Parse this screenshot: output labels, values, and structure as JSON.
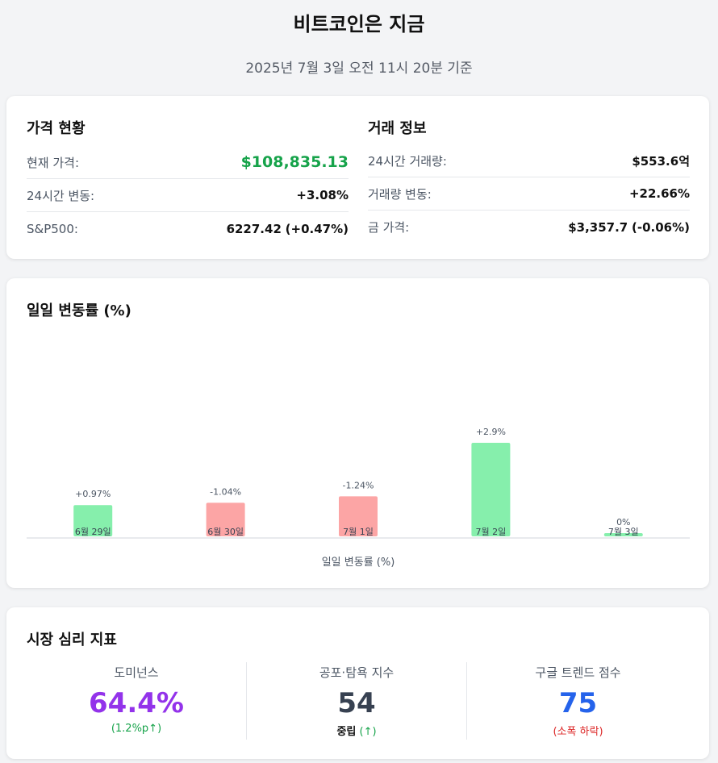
{
  "header": {
    "title": "비트코인은 지금",
    "subtitle": "2025년 7월 3일 오전 11시 20분 기준"
  },
  "price_status": {
    "title": "가격 현황",
    "rows": [
      {
        "label": "현재 가격:",
        "value": "$108,835.13"
      },
      {
        "label": "24시간 변동:",
        "value": "+3.08%"
      },
      {
        "label": "S&P500:",
        "value": "6227.42",
        "change": "(+0.47%)"
      }
    ]
  },
  "trade_info": {
    "title": "거래 정보",
    "rows": [
      {
        "label": "24시간 거래량:",
        "value": "$553.6억"
      },
      {
        "label": "거래량 변동:",
        "value": "+22.66%"
      },
      {
        "label": "금 가격:",
        "value": "$3,357.7",
        "change": "(-0.06%)"
      }
    ]
  },
  "chart_section": {
    "title": "일일 변동률 (%)"
  },
  "chart_data": {
    "type": "bar",
    "categories": [
      "6월 29일",
      "6월 30일",
      "7월 1일",
      "7월 2일",
      "7월 3일"
    ],
    "values": [
      0.97,
      -1.04,
      -1.24,
      2.9,
      0
    ],
    "data_labels": [
      "+0.97%",
      "-1.04%",
      "-1.24%",
      "+2.9%",
      "0%"
    ],
    "xlabel": "일일 변동률 (%)",
    "ylabel": "",
    "colors": {
      "positive": "#86efac",
      "negative": "#fca5a5"
    },
    "grid": false
  },
  "sentiment": {
    "title": "시장 심리 지표",
    "items": [
      {
        "label": "도미넌스",
        "value": "64.4%",
        "note": "(1.2%p↑)"
      },
      {
        "label": "공포·탐욕 지수",
        "value": "54",
        "note_strong": "중립",
        "note": "(↑)"
      },
      {
        "label": "구글 트렌드 점수",
        "value": "75",
        "note": "(소폭 하락)"
      }
    ]
  }
}
